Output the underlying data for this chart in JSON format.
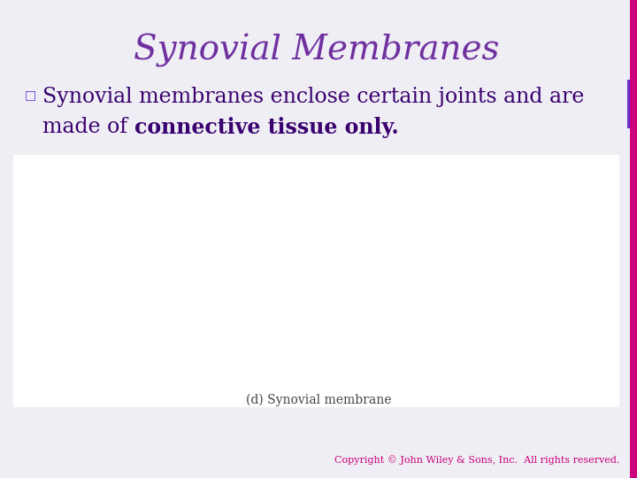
{
  "title": "Synovial Membranes",
  "title_color": "#7030A0",
  "title_fontsize": 28,
  "background_color": "#EEEEF4",
  "right_bar_color": "#CC007A",
  "right_bar_purple": "#6633CC",
  "bullet_color": "#6633CC",
  "bullet_char": "□",
  "line1_text": "Synovial membranes enclose certain joints and are",
  "line2_prefix": "made of ",
  "line2_bold": "connective tissue only.",
  "body_color": "#3A006F",
  "body_fontsize": 17,
  "copyright_text": "Copyright © John Wiley & Sons, Inc.  All rights reserved.",
  "copyright_color": "#CC007A",
  "copyright_fontsize": 8,
  "image_label": "(d) Synovial membrane",
  "image_label_color": "#444444",
  "image_label_fontsize": 10,
  "image_bg": "#FFFFFF",
  "slide_bg": "#EEEEF4"
}
